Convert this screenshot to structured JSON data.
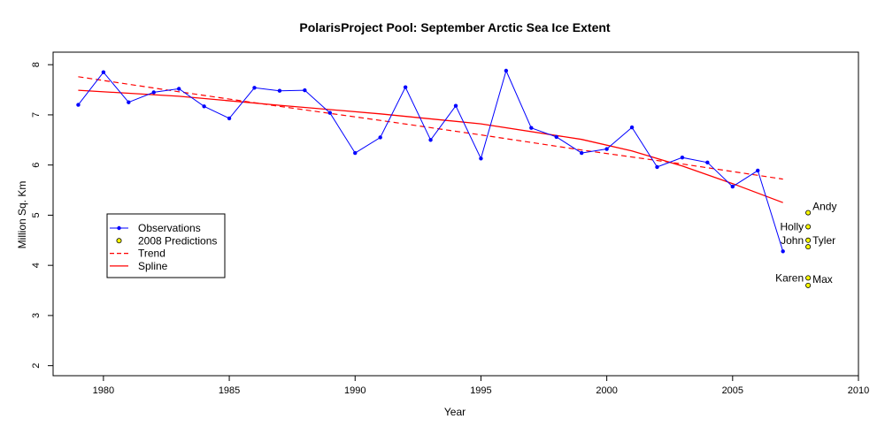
{
  "chart_data": {
    "type": "line",
    "title": "PolarisProject Pool: September Arctic Sea Ice Extent",
    "xlabel": "Year",
    "ylabel": "Million Sq. Km",
    "xlim": [
      1978,
      2010
    ],
    "ylim": [
      1.8,
      8.25
    ],
    "xticks": [
      1980,
      1985,
      1990,
      1995,
      2000,
      2005,
      2010
    ],
    "yticks": [
      2,
      3,
      4,
      5,
      6,
      7,
      8
    ],
    "grid": false,
    "legend_position": "left",
    "legend": [
      {
        "label": "Observations",
        "style": "line-dot",
        "color": "#0000ff"
      },
      {
        "label": "2008 Predictions",
        "style": "circle",
        "color": "#ffff00"
      },
      {
        "label": "Trend",
        "style": "dashed",
        "color": "#ff0000"
      },
      {
        "label": "Spline",
        "style": "solid",
        "color": "#ff0000"
      }
    ],
    "series": [
      {
        "name": "Observations",
        "color": "#0000ff",
        "x": [
          1979,
          1980,
          1981,
          1982,
          1983,
          1984,
          1985,
          1986,
          1987,
          1988,
          1989,
          1990,
          1991,
          1992,
          1993,
          1994,
          1995,
          1996,
          1997,
          1998,
          1999,
          2000,
          2001,
          2002,
          2003,
          2004,
          2005,
          2006,
          2007
        ],
        "y": [
          7.2,
          7.85,
          7.25,
          7.45,
          7.52,
          7.17,
          6.93,
          7.54,
          7.48,
          7.49,
          7.04,
          6.24,
          6.55,
          7.55,
          6.5,
          7.18,
          6.13,
          7.88,
          6.74,
          6.56,
          6.24,
          6.32,
          6.75,
          5.96,
          6.15,
          6.05,
          5.57,
          5.89,
          4.28
        ]
      },
      {
        "name": "Trend",
        "color": "#ff0000",
        "x": [
          1979,
          1983,
          1987,
          1991,
          1995,
          1999,
          2003,
          2007
        ],
        "y": [
          7.76,
          7.46,
          7.17,
          6.89,
          6.6,
          6.3,
          6.02,
          5.72
        ]
      },
      {
        "name": "Spline",
        "color": "#ff0000",
        "x": [
          1979,
          1983,
          1987,
          1991,
          1995,
          1999,
          2001,
          2003,
          2005,
          2007
        ],
        "y": [
          7.49,
          7.37,
          7.19,
          7.02,
          6.82,
          6.51,
          6.28,
          5.98,
          5.63,
          5.25
        ]
      }
    ],
    "predictions": {
      "name": "2008 Predictions",
      "x": 2008,
      "points": [
        {
          "name": "Andy",
          "value": 5.05,
          "label_side": "right"
        },
        {
          "name": "Holly",
          "value": 4.77,
          "label_side": "left"
        },
        {
          "name": "John",
          "value": 4.5,
          "label_side": "left"
        },
        {
          "name": "Tyler",
          "value": 4.37,
          "label_side": "right"
        },
        {
          "name": "Karen",
          "value": 3.75,
          "label_side": "left"
        },
        {
          "name": "Max",
          "value": 3.6,
          "label_side": "right"
        }
      ]
    }
  }
}
